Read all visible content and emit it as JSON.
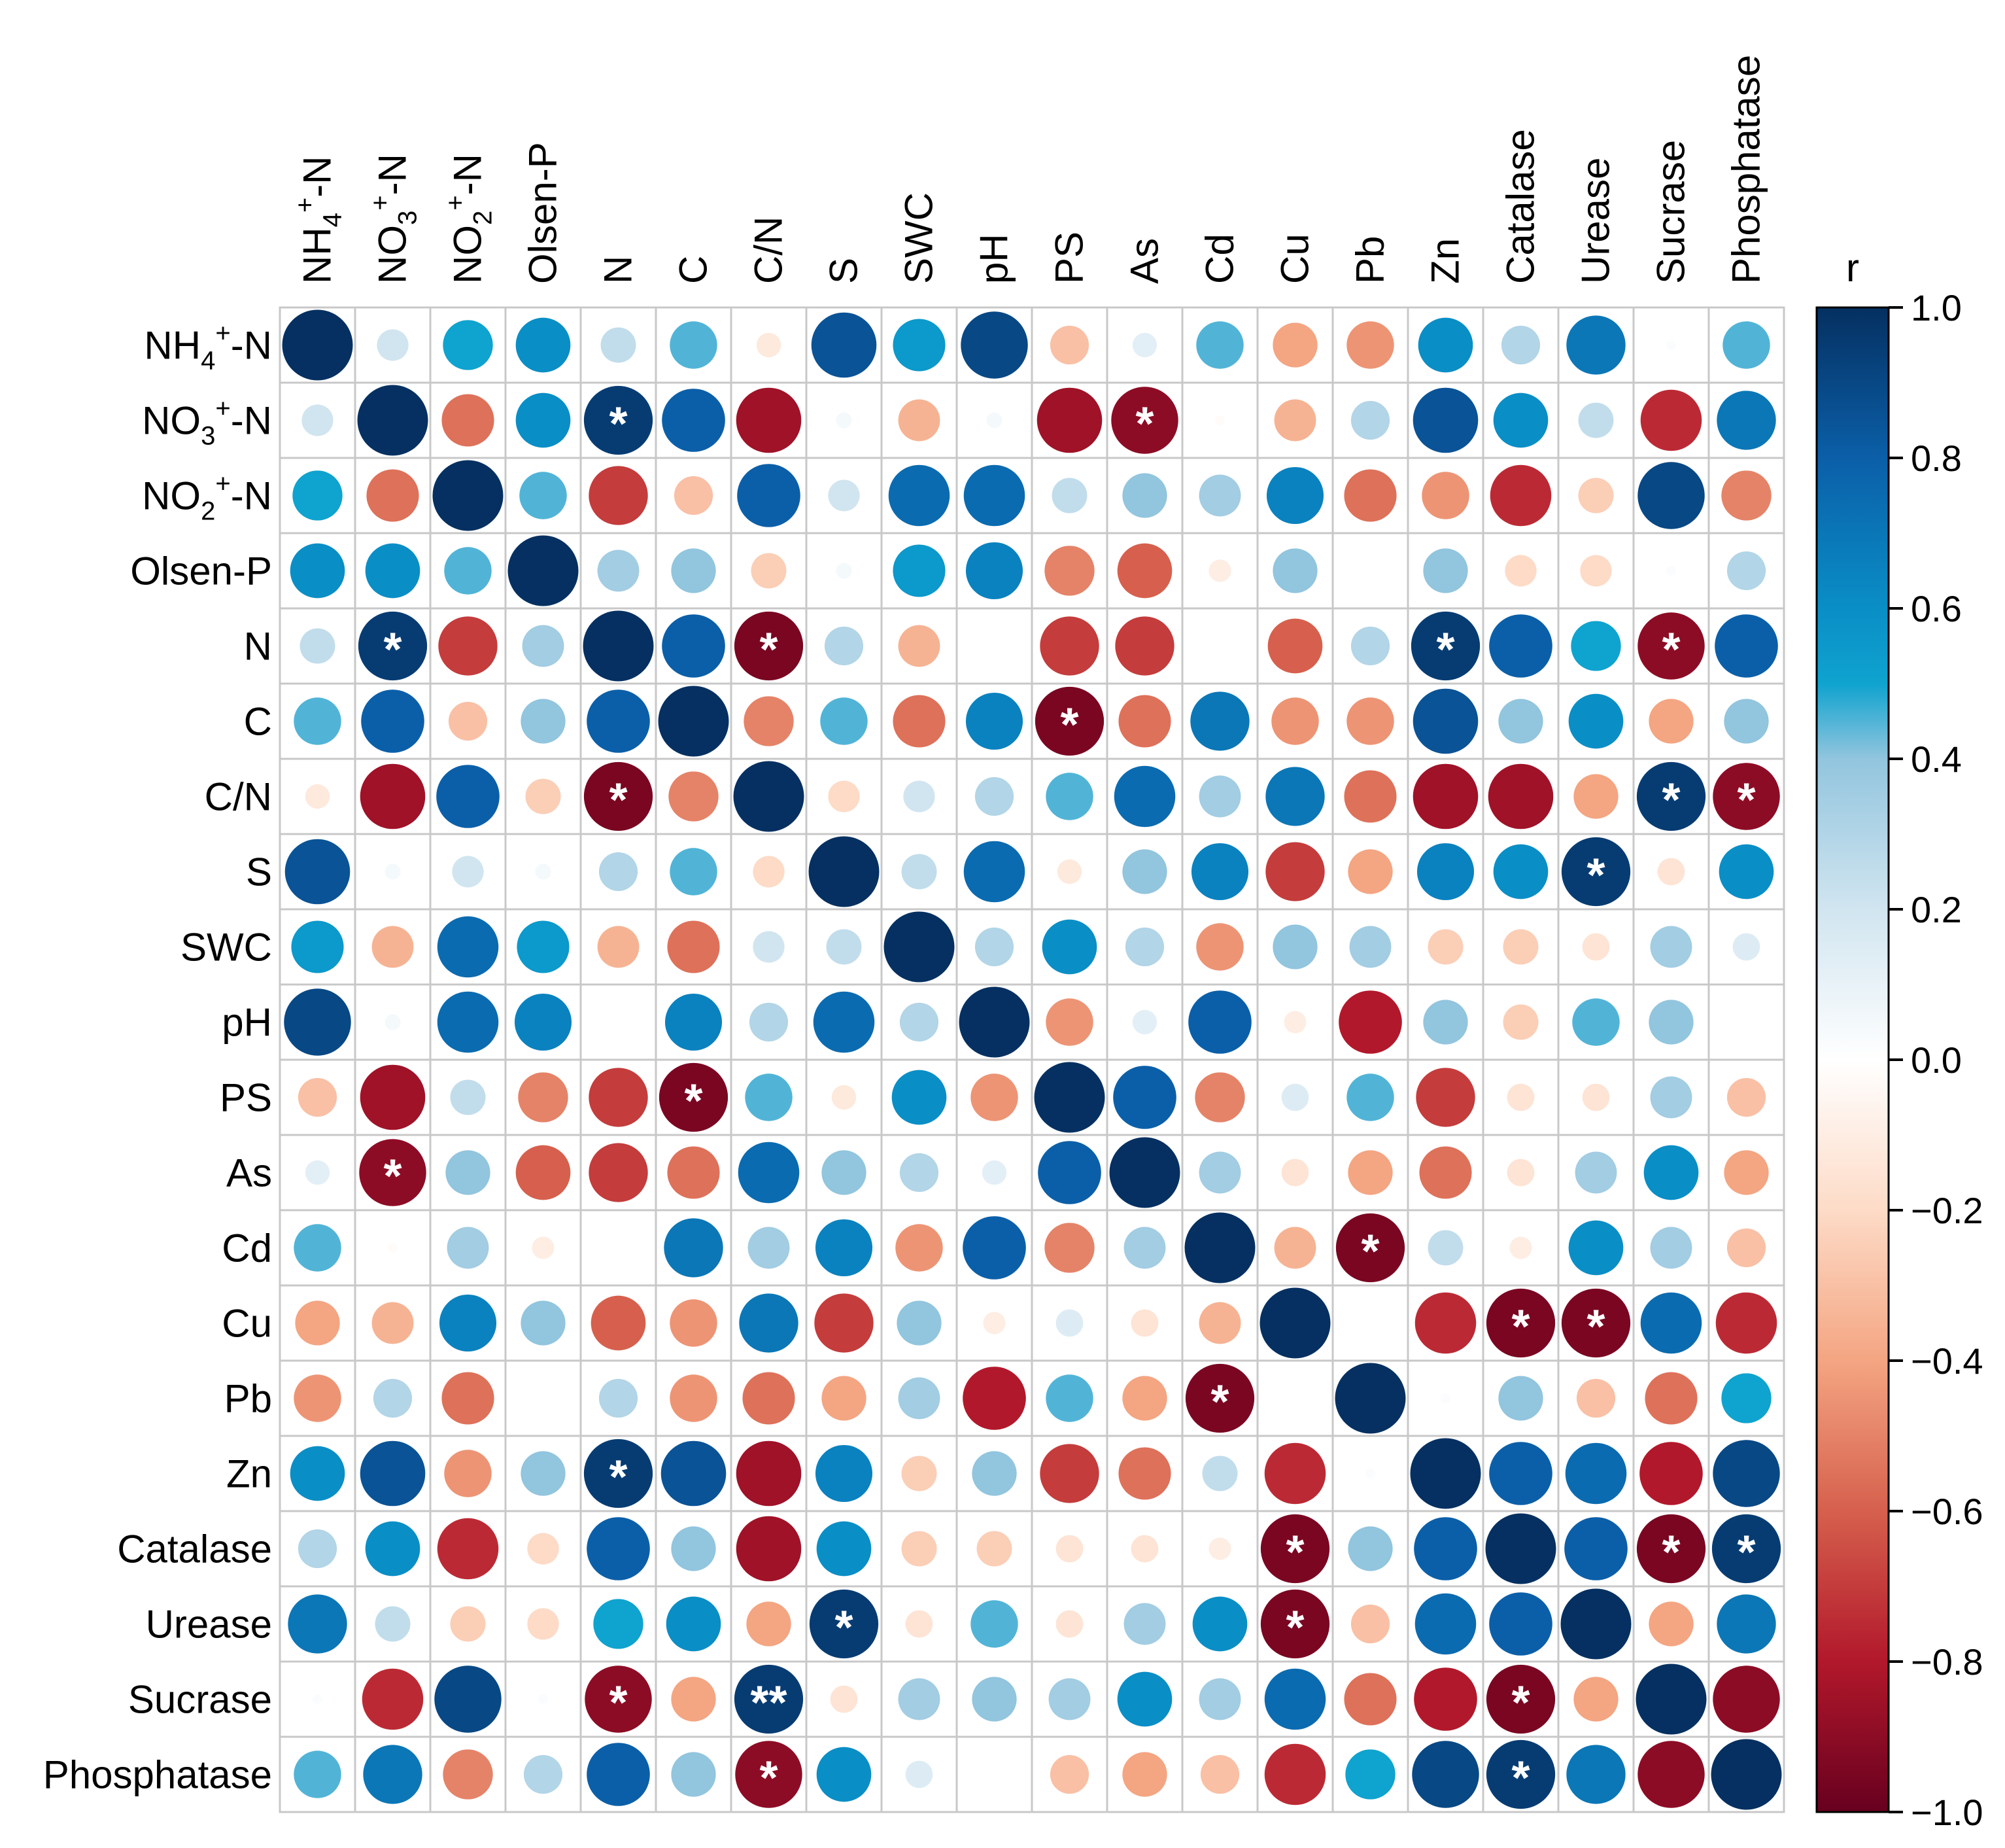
{
  "chart_data": {
    "type": "heatmap",
    "subtype": "correlation-circle-matrix",
    "variables": [
      "NH4+-N",
      "NO3+-N",
      "NO2+-N",
      "Olsen-P",
      "N",
      "C",
      "C/N",
      "S",
      "SWC",
      "pH",
      "PS",
      "As",
      "Cd",
      "Cu",
      "Pb",
      "Zn",
      "Catalase",
      "Urease",
      "Sucrase",
      "Phosphatase"
    ],
    "label_parts": [
      {
        "base": "NH",
        "sub": "4",
        "sup": "+",
        "tail": "-N"
      },
      {
        "base": "NO",
        "sub": "3",
        "sup": "+",
        "tail": "-N"
      },
      {
        "base": "NO",
        "sub": "2",
        "sup": "+",
        "tail": "-N"
      },
      {
        "base": "Olsen-P"
      },
      {
        "base": "N"
      },
      {
        "base": "C"
      },
      {
        "base": "C/N"
      },
      {
        "base": "S"
      },
      {
        "base": "SWC"
      },
      {
        "base": "pH"
      },
      {
        "base": "PS"
      },
      {
        "base": "As"
      },
      {
        "base": "Cd"
      },
      {
        "base": "Cu"
      },
      {
        "base": "Pb"
      },
      {
        "base": "Zn"
      },
      {
        "base": "Catalase"
      },
      {
        "base": "Urease"
      },
      {
        "base": "Sucrase"
      },
      {
        "base": "Phosphatase"
      }
    ],
    "matrix": [
      [
        1.0,
        0.2,
        0.5,
        0.6,
        0.25,
        0.45,
        -0.12,
        0.85,
        0.55,
        0.9,
        -0.3,
        0.12,
        0.45,
        -0.4,
        -0.45,
        0.6,
        0.3,
        0.7,
        0.02,
        0.45
      ],
      [
        0.2,
        1.0,
        -0.55,
        0.6,
        0.95,
        0.8,
        -0.85,
        0.05,
        -0.35,
        0.05,
        -0.85,
        -0.9,
        -0.02,
        -0.35,
        0.3,
        0.85,
        0.6,
        0.25,
        -0.75,
        0.7
      ],
      [
        0.5,
        -0.55,
        1.0,
        0.45,
        -0.7,
        -0.3,
        0.8,
        0.2,
        0.75,
        0.75,
        0.25,
        0.4,
        0.35,
        0.65,
        -0.55,
        -0.45,
        -0.75,
        -0.25,
        0.9,
        -0.5
      ],
      [
        0.6,
        0.6,
        0.45,
        1.0,
        0.35,
        0.4,
        -0.25,
        0.05,
        0.55,
        0.65,
        -0.5,
        -0.6,
        -0.1,
        0.4,
        0.0,
        0.4,
        -0.2,
        -0.2,
        0.02,
        0.3
      ],
      [
        0.25,
        0.95,
        -0.7,
        0.35,
        1.0,
        0.8,
        -0.95,
        0.3,
        -0.35,
        0.0,
        -0.7,
        -0.7,
        0.0,
        -0.6,
        0.3,
        0.95,
        0.8,
        0.5,
        -0.9,
        0.8
      ],
      [
        0.45,
        0.8,
        -0.3,
        0.4,
        0.8,
        1.0,
        -0.5,
        0.45,
        -0.55,
        0.65,
        -0.95,
        -0.55,
        0.7,
        -0.45,
        -0.45,
        0.85,
        0.4,
        0.6,
        -0.4,
        0.4
      ],
      [
        -0.12,
        -0.85,
        0.8,
        -0.25,
        -0.95,
        -0.5,
        1.0,
        -0.2,
        0.2,
        0.3,
        0.45,
        0.75,
        0.35,
        0.7,
        -0.55,
        -0.85,
        -0.85,
        -0.4,
        0.95,
        -0.9
      ],
      [
        0.85,
        0.05,
        0.2,
        0.05,
        0.3,
        0.45,
        -0.2,
        1.0,
        0.25,
        0.75,
        -0.12,
        0.4,
        0.65,
        -0.7,
        -0.4,
        0.65,
        0.6,
        0.95,
        -0.15,
        0.6
      ],
      [
        0.55,
        -0.35,
        0.75,
        0.55,
        -0.35,
        -0.55,
        0.2,
        0.25,
        1.0,
        0.3,
        0.6,
        0.3,
        -0.45,
        0.4,
        0.35,
        -0.25,
        -0.25,
        -0.15,
        0.35,
        0.15
      ],
      [
        0.9,
        0.05,
        0.75,
        0.65,
        0.0,
        0.65,
        0.3,
        0.75,
        0.3,
        1.0,
        -0.45,
        0.12,
        0.8,
        -0.1,
        -0.8,
        0.4,
        -0.25,
        0.45,
        0.4,
        0.0
      ],
      [
        -0.3,
        -0.85,
        0.25,
        -0.5,
        -0.7,
        -0.95,
        0.45,
        -0.12,
        0.6,
        -0.45,
        1.0,
        0.8,
        -0.5,
        0.15,
        0.45,
        -0.7,
        -0.15,
        -0.15,
        0.35,
        -0.3
      ],
      [
        0.12,
        -0.9,
        0.4,
        -0.6,
        -0.7,
        -0.55,
        0.75,
        0.4,
        0.3,
        0.12,
        0.8,
        1.0,
        0.35,
        -0.15,
        -0.4,
        -0.55,
        -0.15,
        0.35,
        0.6,
        -0.4
      ],
      [
        0.45,
        -0.02,
        0.35,
        -0.1,
        0.0,
        0.7,
        0.35,
        0.65,
        -0.45,
        0.8,
        -0.5,
        0.35,
        1.0,
        -0.35,
        -0.95,
        0.25,
        -0.1,
        0.6,
        0.35,
        -0.3
      ],
      [
        -0.4,
        -0.35,
        0.65,
        0.4,
        -0.6,
        -0.45,
        0.7,
        -0.7,
        0.4,
        -0.1,
        0.15,
        -0.15,
        -0.35,
        1.0,
        0.0,
        -0.75,
        -0.95,
        -0.95,
        0.75,
        -0.75
      ],
      [
        -0.45,
        0.3,
        -0.55,
        0.0,
        0.3,
        -0.45,
        -0.55,
        -0.4,
        0.35,
        -0.8,
        0.45,
        -0.4,
        -0.95,
        0.0,
        1.0,
        0.02,
        0.4,
        -0.3,
        -0.55,
        0.5
      ],
      [
        0.6,
        0.85,
        -0.45,
        0.4,
        0.95,
        0.85,
        -0.85,
        0.65,
        -0.25,
        0.4,
        -0.7,
        -0.55,
        0.25,
        -0.75,
        0.02,
        1.0,
        0.8,
        0.75,
        -0.8,
        0.9
      ],
      [
        0.3,
        0.6,
        -0.75,
        -0.2,
        0.8,
        0.4,
        -0.85,
        0.6,
        -0.25,
        -0.25,
        -0.15,
        -0.15,
        -0.1,
        -0.95,
        0.4,
        0.8,
        1.0,
        0.8,
        -0.95,
        0.95
      ],
      [
        0.7,
        0.25,
        -0.25,
        -0.2,
        0.5,
        0.6,
        -0.4,
        0.95,
        -0.15,
        0.45,
        -0.15,
        0.35,
        0.6,
        -0.95,
        -0.3,
        0.75,
        0.8,
        1.0,
        -0.4,
        0.7
      ],
      [
        0.02,
        -0.75,
        0.9,
        0.02,
        -0.9,
        -0.4,
        0.95,
        -0.15,
        0.35,
        0.4,
        0.35,
        0.6,
        0.35,
        0.75,
        -0.55,
        -0.8,
        -0.95,
        -0.4,
        1.0,
        -0.9
      ],
      [
        0.45,
        0.7,
        -0.5,
        0.3,
        0.8,
        0.4,
        -0.9,
        0.6,
        0.15,
        0.0,
        -0.3,
        -0.4,
        -0.3,
        -0.75,
        0.5,
        0.9,
        0.95,
        0.7,
        -0.9,
        1.0
      ]
    ],
    "significance": [
      {
        "row": 1,
        "col": 4,
        "mark": "*"
      },
      {
        "row": 1,
        "col": 11,
        "mark": "*"
      },
      {
        "row": 4,
        "col": 1,
        "mark": "*"
      },
      {
        "row": 4,
        "col": 6,
        "mark": "*"
      },
      {
        "row": 4,
        "col": 15,
        "mark": "*"
      },
      {
        "row": 4,
        "col": 18,
        "mark": "*"
      },
      {
        "row": 5,
        "col": 10,
        "mark": "*"
      },
      {
        "row": 6,
        "col": 4,
        "mark": "*"
      },
      {
        "row": 6,
        "col": 18,
        "mark": "*"
      },
      {
        "row": 6,
        "col": 19,
        "mark": "*"
      },
      {
        "row": 7,
        "col": 17,
        "mark": "*"
      },
      {
        "row": 10,
        "col": 5,
        "mark": "*"
      },
      {
        "row": 11,
        "col": 1,
        "mark": "*"
      },
      {
        "row": 12,
        "col": 14,
        "mark": "*"
      },
      {
        "row": 13,
        "col": 16,
        "mark": "*"
      },
      {
        "row": 13,
        "col": 17,
        "mark": "*"
      },
      {
        "row": 14,
        "col": 12,
        "mark": "*"
      },
      {
        "row": 15,
        "col": 4,
        "mark": "*"
      },
      {
        "row": 16,
        "col": 13,
        "mark": "*"
      },
      {
        "row": 16,
        "col": 18,
        "mark": "*"
      },
      {
        "row": 16,
        "col": 19,
        "mark": "*"
      },
      {
        "row": 17,
        "col": 7,
        "mark": "*"
      },
      {
        "row": 17,
        "col": 13,
        "mark": "*"
      },
      {
        "row": 18,
        "col": 4,
        "mark": "*"
      },
      {
        "row": 18,
        "col": 6,
        "mark": "**"
      },
      {
        "row": 18,
        "col": 16,
        "mark": "*"
      },
      {
        "row": 19,
        "col": 6,
        "mark": "*"
      },
      {
        "row": 19,
        "col": 16,
        "mark": "*"
      }
    ],
    "colorbar": {
      "title": "r",
      "range": [
        -1.0,
        1.0
      ],
      "ticks": [
        "1.0",
        "0.8",
        "0.6",
        "0.4",
        "0.2",
        "0.0",
        "−0.2",
        "−0.4",
        "−0.6",
        "−0.8",
        "−1.0"
      ],
      "tick_values": [
        1.0,
        0.8,
        0.6,
        0.4,
        0.2,
        0.0,
        -0.2,
        -0.4,
        -0.6,
        -0.8,
        -1.0
      ]
    },
    "palette": {
      "negative_full": "#67001f",
      "negative_mid": "#d6604d",
      "neutral": "#ffffff",
      "positive_mid": "#4393c3",
      "positive_full": "#053061",
      "stops": [
        {
          "v": -1.0,
          "c": "#67001f"
        },
        {
          "v": -0.8,
          "c": "#b2182b"
        },
        {
          "v": -0.6,
          "c": "#d6604d"
        },
        {
          "v": -0.4,
          "c": "#f4a582"
        },
        {
          "v": -0.2,
          "c": "#fddbc7"
        },
        {
          "v": 0.0,
          "c": "#ffffff"
        },
        {
          "v": 0.2,
          "c": "#d1e5f0"
        },
        {
          "v": 0.4,
          "c": "#92c5de"
        },
        {
          "v": 0.5,
          "c": "#0fa3cf"
        },
        {
          "v": 0.6,
          "c": "#0a8ec6"
        },
        {
          "v": 0.8,
          "c": "#0b5fa8"
        },
        {
          "v": 1.0,
          "c": "#053061"
        }
      ],
      "grid_color": "#c8c8c8",
      "mark_color": "#ffffff"
    }
  }
}
